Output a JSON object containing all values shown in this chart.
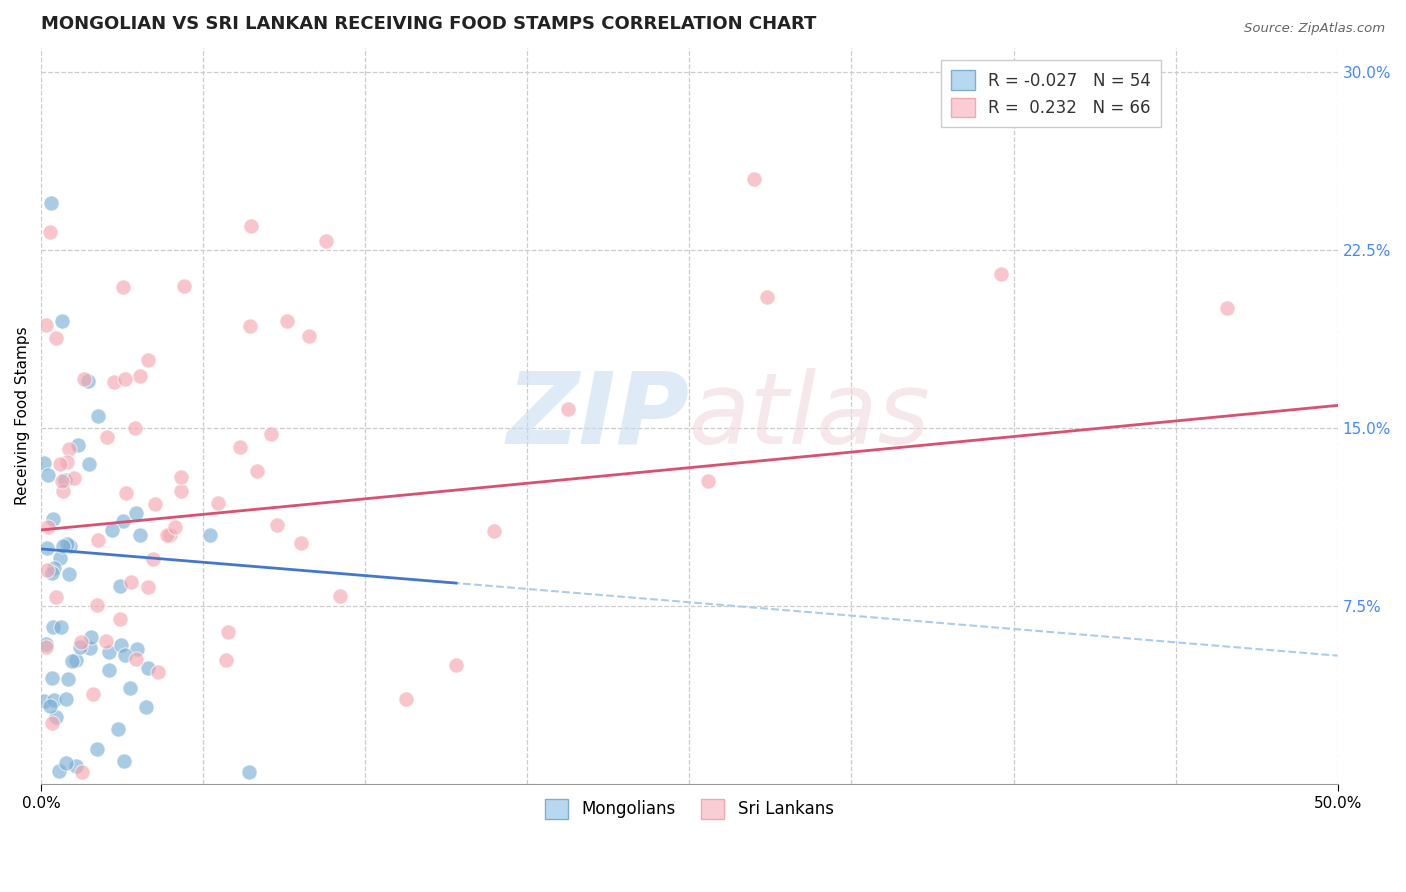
{
  "title": "MONGOLIAN VS SRI LANKAN RECEIVING FOOD STAMPS CORRELATION CHART",
  "source": "Source: ZipAtlas.com",
  "ylabel": "Receiving Food Stamps",
  "mongolian_color": "#7bafd4",
  "srilanka_color": "#f4a7b0",
  "mongolian_edge": "#5a9bc4",
  "srilanka_edge": "#e88098",
  "background_color": "#ffffff",
  "grid_color": "#cccccc",
  "title_fontsize": 13,
  "axis_label_fontsize": 11,
  "tick_fontsize": 11,
  "watermark": "ZIPatlas",
  "xlim": [
    0.0,
    0.5
  ],
  "ylim": [
    0.0,
    0.31
  ],
  "right_ytick_vals": [
    0.075,
    0.15,
    0.225,
    0.3
  ],
  "right_ytick_labels": [
    "7.5%",
    "15.0%",
    "22.5%",
    "30.0%"
  ],
  "right_ytick_color": "#4488ff",
  "mong_trend_color": "#4477cc",
  "sri_trend_color": "#d95070",
  "dash_trend_color": "#aaccee",
  "legend_top_labels": [
    "R = -0.027   N = 54",
    "R =  0.232   N = 66"
  ],
  "legend_bot_labels": [
    "Mongolians",
    "Sri Lankans"
  ],
  "mong_patch_face": "#b8d8f0",
  "mong_patch_edge": "#7bafd4",
  "sri_patch_face": "#f9cdd3",
  "sri_patch_edge": "#f4a7b0"
}
